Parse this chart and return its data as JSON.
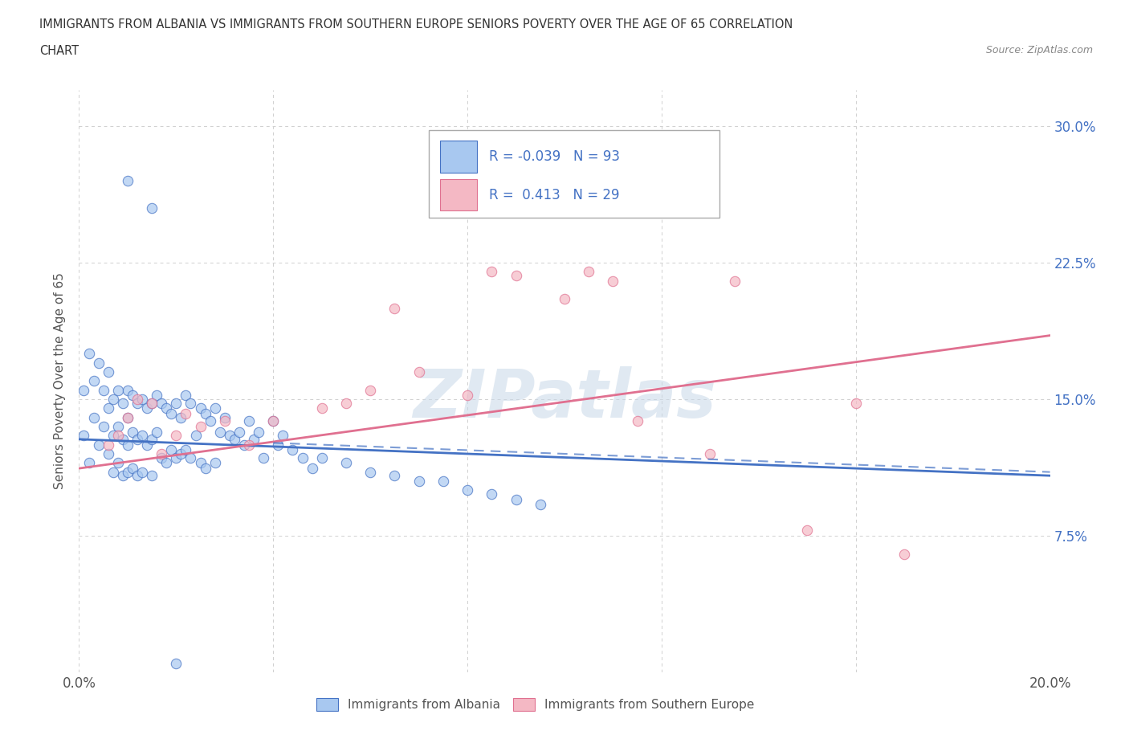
{
  "title_line1": "IMMIGRANTS FROM ALBANIA VS IMMIGRANTS FROM SOUTHERN EUROPE SENIORS POVERTY OVER THE AGE OF 65 CORRELATION",
  "title_line2": "CHART",
  "source": "Source: ZipAtlas.com",
  "ylabel": "Seniors Poverty Over the Age of 65",
  "xlim": [
    0.0,
    0.2
  ],
  "ylim": [
    0.0,
    0.32
  ],
  "xtick_pos": [
    0.0,
    0.04,
    0.08,
    0.12,
    0.16,
    0.2
  ],
  "xtick_labels": [
    "0.0%",
    "",
    "",
    "",
    "",
    "20.0%"
  ],
  "ytick_pos": [
    0.0,
    0.075,
    0.15,
    0.225,
    0.3
  ],
  "ytick_labels_right": [
    "",
    "7.5%",
    "15.0%",
    "22.5%",
    "30.0%"
  ],
  "albania_color": "#a8c8f0",
  "albania_line_color": "#4472c4",
  "southern_color": "#f4b8c4",
  "southern_line_color": "#e07090",
  "legend_text_color": "#4472c4",
  "text_color": "#333333",
  "right_axis_color": "#4472c4",
  "background_color": "#ffffff",
  "grid_color": "#d0d0d0",
  "grid_linestyle": "--",
  "albania_R": -0.039,
  "albania_N": 93,
  "southern_R": 0.413,
  "southern_N": 29,
  "watermark": "ZIPatlas",
  "albania_trend_x": [
    0.0,
    0.2
  ],
  "albania_trend_y": [
    0.128,
    0.108
  ],
  "southern_trend_x": [
    0.0,
    0.2
  ],
  "southern_trend_y": [
    0.112,
    0.185
  ],
  "albania_x": [
    0.001,
    0.001,
    0.002,
    0.002,
    0.003,
    0.003,
    0.004,
    0.004,
    0.005,
    0.005,
    0.006,
    0.006,
    0.006,
    0.007,
    0.007,
    0.007,
    0.008,
    0.008,
    0.008,
    0.009,
    0.009,
    0.009,
    0.01,
    0.01,
    0.01,
    0.01,
    0.011,
    0.011,
    0.011,
    0.012,
    0.012,
    0.012,
    0.013,
    0.013,
    0.013,
    0.014,
    0.014,
    0.015,
    0.015,
    0.015,
    0.016,
    0.016,
    0.017,
    0.017,
    0.018,
    0.018,
    0.019,
    0.019,
    0.02,
    0.02,
    0.021,
    0.021,
    0.022,
    0.022,
    0.023,
    0.023,
    0.024,
    0.025,
    0.025,
    0.026,
    0.026,
    0.027,
    0.028,
    0.028,
    0.029,
    0.03,
    0.031,
    0.032,
    0.033,
    0.034,
    0.035,
    0.036,
    0.037,
    0.038,
    0.04,
    0.041,
    0.042,
    0.044,
    0.046,
    0.048,
    0.05,
    0.055,
    0.06,
    0.065,
    0.07,
    0.075,
    0.08,
    0.085,
    0.09,
    0.095,
    0.01,
    0.015,
    0.02
  ],
  "albania_y": [
    0.155,
    0.13,
    0.175,
    0.115,
    0.16,
    0.14,
    0.17,
    0.125,
    0.155,
    0.135,
    0.165,
    0.145,
    0.12,
    0.15,
    0.13,
    0.11,
    0.155,
    0.135,
    0.115,
    0.148,
    0.128,
    0.108,
    0.155,
    0.14,
    0.125,
    0.11,
    0.152,
    0.132,
    0.112,
    0.148,
    0.128,
    0.108,
    0.15,
    0.13,
    0.11,
    0.145,
    0.125,
    0.148,
    0.128,
    0.108,
    0.152,
    0.132,
    0.148,
    0.118,
    0.145,
    0.115,
    0.142,
    0.122,
    0.148,
    0.118,
    0.14,
    0.12,
    0.152,
    0.122,
    0.148,
    0.118,
    0.13,
    0.145,
    0.115,
    0.142,
    0.112,
    0.138,
    0.145,
    0.115,
    0.132,
    0.14,
    0.13,
    0.128,
    0.132,
    0.125,
    0.138,
    0.128,
    0.132,
    0.118,
    0.138,
    0.125,
    0.13,
    0.122,
    0.118,
    0.112,
    0.118,
    0.115,
    0.11,
    0.108,
    0.105,
    0.105,
    0.1,
    0.098,
    0.095,
    0.092,
    0.27,
    0.255,
    0.005
  ],
  "southern_x": [
    0.006,
    0.008,
    0.01,
    0.012,
    0.015,
    0.017,
    0.02,
    0.022,
    0.025,
    0.03,
    0.035,
    0.04,
    0.05,
    0.055,
    0.06,
    0.065,
    0.07,
    0.08,
    0.085,
    0.09,
    0.1,
    0.105,
    0.11,
    0.115,
    0.13,
    0.135,
    0.15,
    0.16,
    0.17
  ],
  "southern_y": [
    0.125,
    0.13,
    0.14,
    0.15,
    0.148,
    0.12,
    0.13,
    0.142,
    0.135,
    0.138,
    0.125,
    0.138,
    0.145,
    0.148,
    0.155,
    0.2,
    0.165,
    0.152,
    0.22,
    0.218,
    0.205,
    0.22,
    0.215,
    0.138,
    0.12,
    0.215,
    0.078,
    0.148,
    0.065
  ]
}
